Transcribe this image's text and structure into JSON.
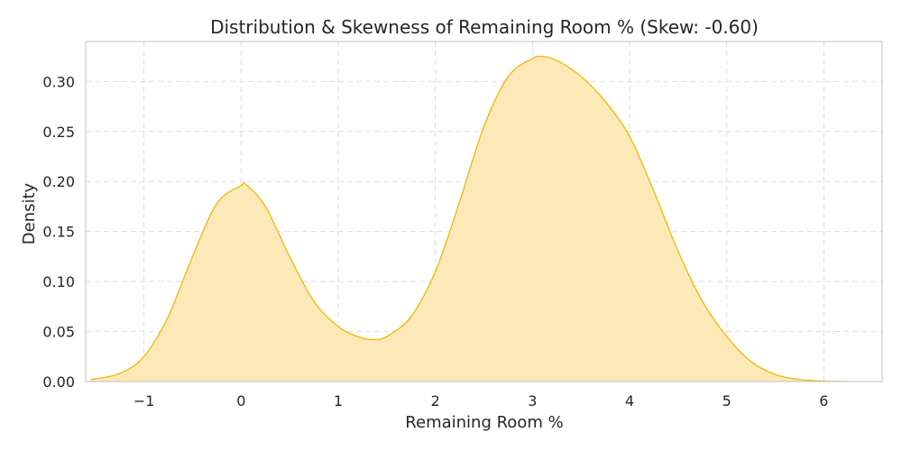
{
  "chart_data": {
    "type": "area",
    "title": "Distribution & Skewness of Remaining Room % (Skew: -0.60)",
    "xlabel": "Remaining Room %",
    "ylabel": "Density",
    "xlim": [
      -1.6,
      6.6
    ],
    "ylim": [
      0,
      0.34
    ],
    "x_ticks": [
      -1,
      0,
      1,
      2,
      3,
      4,
      5,
      6
    ],
    "x_tick_labels": [
      "−1",
      "0",
      "1",
      "2",
      "3",
      "4",
      "5",
      "6"
    ],
    "y_ticks": [
      0,
      0.05,
      0.1,
      0.15,
      0.2,
      0.25,
      0.3
    ],
    "y_tick_labels": [
      "0.00",
      "0.05",
      "0.10",
      "0.15",
      "0.20",
      "0.25",
      "0.30"
    ],
    "grid": true,
    "line_color": "#f2b705",
    "fill_color": "#fde9b8",
    "series": [
      {
        "x": [
          -1.55,
          -1.25,
          -1.0,
          -0.75,
          -0.5,
          -0.25,
          0.0,
          0.05,
          0.25,
          0.5,
          0.75,
          1.0,
          1.2,
          1.35,
          1.5,
          1.75,
          2.0,
          2.25,
          2.5,
          2.75,
          3.0,
          3.1,
          3.25,
          3.5,
          3.75,
          4.0,
          4.25,
          4.5,
          4.75,
          5.0,
          5.25,
          5.5,
          5.75,
          6.0,
          6.25
        ],
        "y": [
          0.002,
          0.008,
          0.025,
          0.065,
          0.125,
          0.178,
          0.196,
          0.197,
          0.175,
          0.125,
          0.08,
          0.055,
          0.045,
          0.042,
          0.045,
          0.065,
          0.11,
          0.18,
          0.255,
          0.305,
          0.323,
          0.325,
          0.321,
          0.305,
          0.28,
          0.245,
          0.19,
          0.13,
          0.08,
          0.045,
          0.02,
          0.007,
          0.002,
          0.0005,
          0.0001
        ]
      }
    ]
  }
}
